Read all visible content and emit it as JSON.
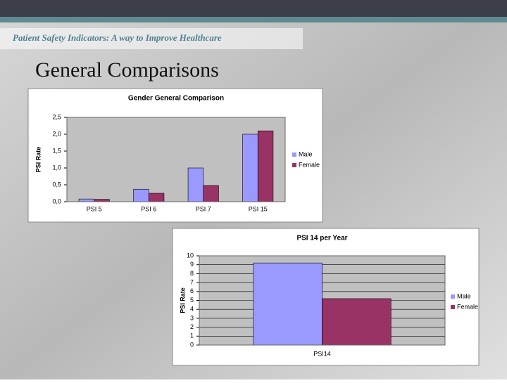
{
  "header": "Patient Safety Indicators: A way to Improve Healthcare",
  "title": "General Comparisons",
  "chart_data": [
    {
      "type": "bar",
      "title": "Gender General Comparison",
      "y_label": "PSI Rate",
      "categories": [
        "PSI 5",
        "PSI 6",
        "PSI 7",
        "PSI 15"
      ],
      "series": [
        {
          "name": "Male",
          "color": "#9999ff",
          "values": [
            0.08,
            0.37,
            1.0,
            2.0
          ]
        },
        {
          "name": "Female",
          "color": "#993366",
          "values": [
            0.07,
            0.25,
            0.48,
            2.1
          ]
        }
      ],
      "ylim": [
        0,
        2.5
      ],
      "yticks": [
        {
          "value": 0,
          "label": "0,0"
        },
        {
          "value": 0.5,
          "label": "0,5"
        },
        {
          "value": 1,
          "label": "1,0"
        },
        {
          "value": 1.5,
          "label": "1,5"
        },
        {
          "value": 2,
          "label": "2,0"
        },
        {
          "value": 2.5,
          "label": "2,5"
        }
      ],
      "grid": false,
      "legend": "right"
    },
    {
      "type": "bar",
      "title": "PSI 14 per Year",
      "y_label": "PSI Rate",
      "categories": [
        "PSI14"
      ],
      "series": [
        {
          "name": "Male",
          "color": "#9999ff",
          "values": [
            9.2
          ]
        },
        {
          "name": "Female",
          "color": "#993366",
          "values": [
            5.2
          ]
        }
      ],
      "ylim": [
        0,
        10
      ],
      "yticks": [
        0,
        1,
        2,
        3,
        4,
        5,
        6,
        7,
        8,
        9,
        10
      ],
      "grid": true,
      "legend": "right"
    }
  ]
}
